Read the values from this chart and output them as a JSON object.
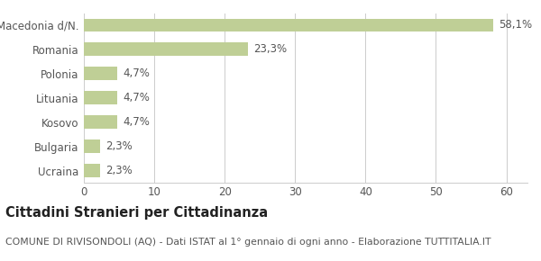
{
  "categories": [
    "Ucraina",
    "Bulgaria",
    "Kosovo",
    "Lituania",
    "Polonia",
    "Romania",
    "Macedonia d/N."
  ],
  "values": [
    2.3,
    2.3,
    4.7,
    4.7,
    4.7,
    23.3,
    58.1
  ],
  "labels": [
    "2,3%",
    "2,3%",
    "4,7%",
    "4,7%",
    "4,7%",
    "23,3%",
    "58,1%"
  ],
  "bar_color": "#bfcf96",
  "background_color": "#ffffff",
  "grid_color": "#cccccc",
  "title_bold": "Cittadini Stranieri per Cittadinanza",
  "subtitle": "COMUNE DI RIVISONDOLI (AQ) - Dati ISTAT al 1° gennaio di ogni anno - Elaborazione TUTTITALIA.IT",
  "xlim": [
    0,
    63
  ],
  "xticks": [
    0,
    10,
    20,
    30,
    40,
    50,
    60
  ],
  "label_fontsize": 8.5,
  "tick_fontsize": 8.5,
  "title_fontsize": 10.5,
  "subtitle_fontsize": 7.8,
  "bar_height": 0.55
}
